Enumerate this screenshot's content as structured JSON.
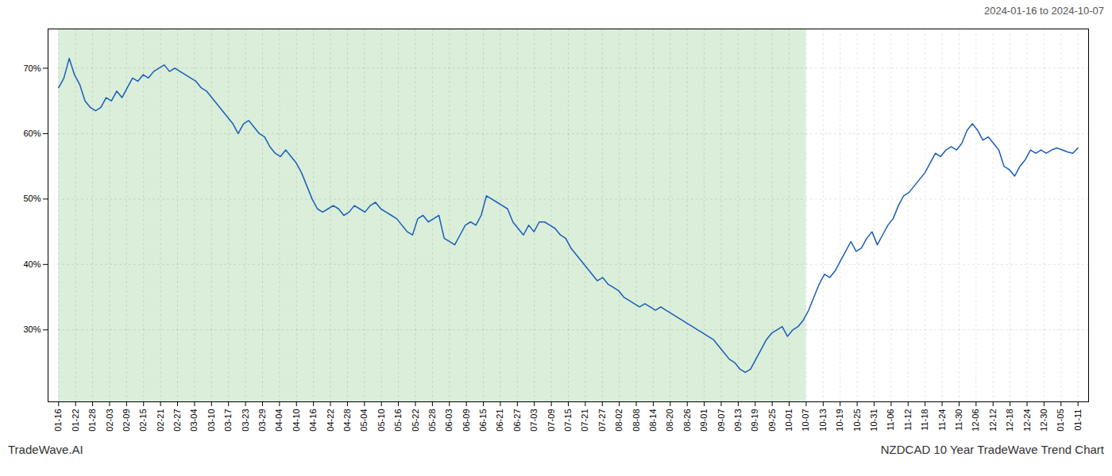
{
  "chart_data": {
    "type": "line",
    "title": "2024-01-16 to 2024-10-07",
    "footer": [
      "TradeWave.AI",
      "NZDCAD 10 Year TradeWave Trend Chart"
    ],
    "color": "#1a5eb8",
    "grid": true,
    "ylim": [
      19,
      76
    ],
    "yticks": [
      {
        "value": 30,
        "label": "30%"
      },
      {
        "value": 40,
        "label": "40%"
      },
      {
        "value": 50,
        "label": "50%"
      },
      {
        "value": 60,
        "label": "60%"
      },
      {
        "value": 70,
        "label": "70%"
      }
    ],
    "xlim": [
      -2,
      195
    ],
    "xticks": [
      {
        "value": 0,
        "label": "01-16"
      },
      {
        "value": 3.216666666666667,
        "label": "01-22"
      },
      {
        "value": 6.433333333333333,
        "label": "01-28"
      },
      {
        "value": 9.65,
        "label": "02-03"
      },
      {
        "value": 12.866666666666667,
        "label": "02-09"
      },
      {
        "value": 16.083333333333332,
        "label": "02-15"
      },
      {
        "value": 19.3,
        "label": "02-21"
      },
      {
        "value": 22.516666666666666,
        "label": "02-27"
      },
      {
        "value": 25.733333333333334,
        "label": "03-04"
      },
      {
        "value": 28.95,
        "label": "03-10"
      },
      {
        "value": 32.166666666666664,
        "label": "03-17"
      },
      {
        "value": 35.38333333333333,
        "label": "03-23"
      },
      {
        "value": 38.6,
        "label": "03-29"
      },
      {
        "value": 41.81666666666667,
        "label": "04-04"
      },
      {
        "value": 45.03333333333333,
        "label": "04-10"
      },
      {
        "value": 48.25,
        "label": "04-16"
      },
      {
        "value": 51.46666666666667,
        "label": "04-22"
      },
      {
        "value": 54.68333333333333,
        "label": "04-28"
      },
      {
        "value": 57.9,
        "label": "05-04"
      },
      {
        "value": 61.11666666666667,
        "label": "05-10"
      },
      {
        "value": 64.33333333333333,
        "label": "05-16"
      },
      {
        "value": 67.55,
        "label": "05-22"
      },
      {
        "value": 70.76666666666667,
        "label": "05-28"
      },
      {
        "value": 73.98333333333333,
        "label": "06-03"
      },
      {
        "value": 77.2,
        "label": "06-09"
      },
      {
        "value": 80.41666666666667,
        "label": "06-15"
      },
      {
        "value": 83.63333333333334,
        "label": "06-21"
      },
      {
        "value": 86.85,
        "label": "06-27"
      },
      {
        "value": 90.06666666666666,
        "label": "07-03"
      },
      {
        "value": 93.28333333333333,
        "label": "07-09"
      },
      {
        "value": 96.5,
        "label": "07-15"
      },
      {
        "value": 99.71666666666667,
        "label": "07-21"
      },
      {
        "value": 102.93333333333332,
        "label": "07-27"
      },
      {
        "value": 106.15,
        "label": "08-02"
      },
      {
        "value": 109.36666666666667,
        "label": "08-08"
      },
      {
        "value": 112.58333333333333,
        "label": "08-14"
      },
      {
        "value": 115.8,
        "label": "08-20"
      },
      {
        "value": 119.01666666666667,
        "label": "08-26"
      },
      {
        "value": 122.23333333333333,
        "label": "09-01"
      },
      {
        "value": 125.45,
        "label": "09-07"
      },
      {
        "value": 128.66666666666666,
        "label": "09-13"
      },
      {
        "value": 131.88333333333333,
        "label": "09-19"
      },
      {
        "value": 135.1,
        "label": "09-25"
      },
      {
        "value": 138.31666666666666,
        "label": "10-01"
      },
      {
        "value": 141.53333333333333,
        "label": "10-07"
      },
      {
        "value": 144.75,
        "label": "10-13"
      },
      {
        "value": 147.96666666666667,
        "label": "10-19"
      },
      {
        "value": 151.18333333333334,
        "label": "10-25"
      },
      {
        "value": 154.4,
        "label": "10-31"
      },
      {
        "value": 157.61666666666667,
        "label": "11-06"
      },
      {
        "value": 160.83333333333334,
        "label": "11-12"
      },
      {
        "value": 164.05,
        "label": "11-18"
      },
      {
        "value": 167.26666666666668,
        "label": "11-24"
      },
      {
        "value": 170.48333333333332,
        "label": "11-30"
      },
      {
        "value": 173.7,
        "label": "12-06"
      },
      {
        "value": 176.91666666666666,
        "label": "12-12"
      },
      {
        "value": 180.13333333333333,
        "label": "12-18"
      },
      {
        "value": 183.35,
        "label": "12-24"
      },
      {
        "value": 186.56666666666666,
        "label": "12-30"
      },
      {
        "value": 189.78333333333333,
        "label": "01-05"
      },
      {
        "value": 193,
        "label": "01-11"
      }
    ],
    "shaded": {
      "x": [
        0,
        141.53333333333333
      ],
      "color": "#daeeda"
    },
    "values": [
      67.0,
      68.5,
      71.5,
      69.0,
      67.5,
      65.0,
      64.0,
      63.5,
      64.0,
      65.5,
      65.0,
      66.5,
      65.5,
      67.0,
      68.5,
      68.0,
      69.0,
      68.5,
      69.5,
      70.0,
      70.5,
      69.5,
      70.0,
      69.5,
      69.0,
      68.5,
      68.0,
      67.0,
      66.5,
      65.5,
      64.5,
      63.5,
      62.5,
      61.5,
      60.0,
      61.5,
      62.0,
      61.0,
      60.0,
      59.5,
      58.0,
      57.0,
      56.5,
      57.5,
      56.5,
      55.5,
      54.0,
      52.0,
      50.0,
      48.5,
      48.0,
      48.5,
      49.0,
      48.5,
      47.5,
      48.0,
      49.0,
      48.5,
      48.0,
      49.0,
      49.5,
      48.5,
      48.0,
      47.5,
      47.0,
      46.0,
      45.0,
      44.5,
      47.0,
      47.5,
      46.5,
      47.0,
      47.5,
      44.0,
      43.5,
      43.0,
      44.5,
      46.0,
      46.5,
      46.0,
      47.5,
      50.5,
      50.0,
      49.5,
      49.0,
      48.5,
      46.5,
      45.5,
      44.5,
      46.0,
      45.0,
      46.5,
      46.5,
      46.0,
      45.5,
      44.5,
      44.0,
      42.5,
      41.5,
      40.5,
      39.5,
      38.5,
      37.5,
      38.0,
      37.0,
      36.5,
      36.0,
      35.0,
      34.5,
      34.0,
      33.5,
      34.0,
      33.5,
      33.0,
      33.5,
      33.0,
      32.5,
      32.0,
      31.5,
      31.0,
      30.5,
      30.0,
      29.5,
      29.0,
      28.5,
      27.5,
      26.5,
      25.5,
      25.0,
      24.0,
      23.5,
      24.0,
      25.5,
      27.0,
      28.5,
      29.5,
      30.0,
      30.5,
      29.0,
      30.0,
      30.5,
      31.5,
      33.0,
      35.0,
      37.0,
      38.5,
      38.0,
      39.0,
      40.5,
      42.0,
      43.5,
      42.0,
      42.5,
      44.0,
      45.0,
      43.0,
      44.5,
      46.0,
      47.0,
      49.0,
      50.5,
      51.0,
      52.0,
      53.0,
      54.0,
      55.5,
      57.0,
      56.5,
      57.5,
      58.0,
      57.5,
      58.5,
      60.5,
      61.5,
      60.5,
      59.0,
      59.5,
      58.5,
      57.5,
      55.0,
      54.5,
      53.5,
      55.0,
      56.0,
      57.5,
      57.0,
      57.5,
      57.0,
      57.5,
      57.8,
      57.5,
      57.2,
      57.0,
      57.8
    ]
  }
}
